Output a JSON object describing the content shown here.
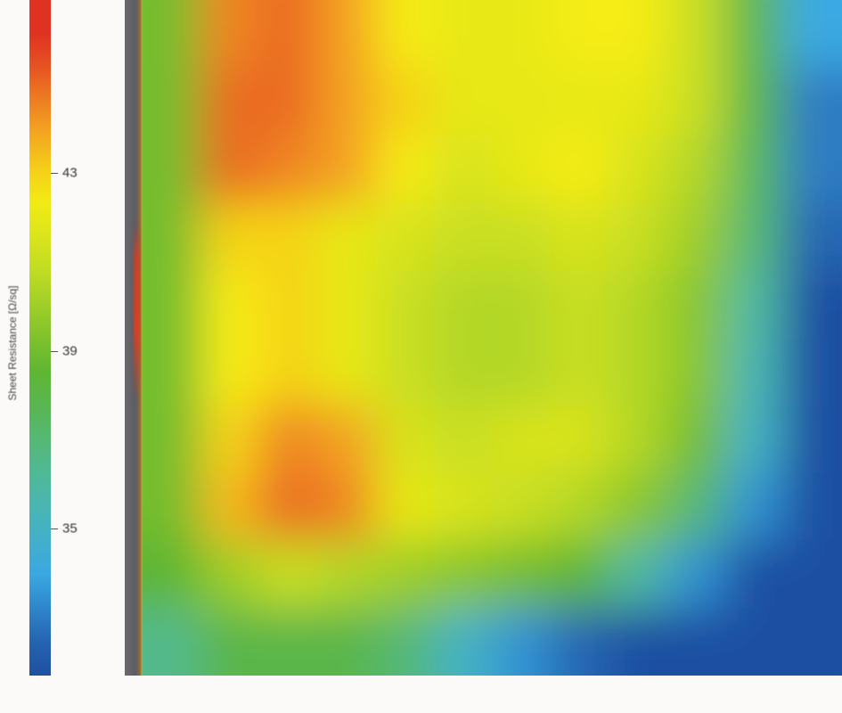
{
  "chart_data": {
    "type": "heatmap",
    "title": "",
    "colorbar": {
      "label": "Sheet Resistance [Ω/sq]",
      "ticks": [
        43,
        39,
        35
      ],
      "range": [
        31.7,
        46.9
      ],
      "colormap": [
        {
          "value": 32,
          "color": "#1f4fa2"
        },
        {
          "value": 34,
          "color": "#3aa9e3"
        },
        {
          "value": 36,
          "color": "#4fbaa2"
        },
        {
          "value": 38.5,
          "color": "#5db532"
        },
        {
          "value": 41,
          "color": "#c9df22"
        },
        {
          "value": 42.5,
          "color": "#f6ec12"
        },
        {
          "value": 44,
          "color": "#f4a122"
        },
        {
          "value": 46,
          "color": "#e03222"
        }
      ]
    },
    "grid": [
      [
        39,
        44.5,
        45,
        44,
        42.5,
        42,
        42,
        42.5,
        42.5,
        41,
        38,
        34
      ],
      [
        39,
        45,
        45,
        44,
        43,
        42,
        42,
        42,
        42,
        41,
        38,
        33
      ],
      [
        39,
        45,
        44.5,
        44,
        42.5,
        41.5,
        42,
        42.5,
        41.5,
        40.5,
        37.5,
        33
      ],
      [
        39,
        43,
        43,
        42,
        41.5,
        41,
        41,
        41.5,
        41,
        40,
        37,
        32.5
      ],
      [
        39,
        42.5,
        43,
        42,
        41,
        40.5,
        40.5,
        41,
        40.5,
        39.5,
        36,
        32
      ],
      [
        39,
        42.5,
        43,
        42,
        41,
        40.5,
        40.5,
        41,
        40.5,
        39.5,
        35.5,
        32
      ],
      [
        39,
        43,
        44.5,
        44,
        41.5,
        41,
        41.5,
        41.5,
        40.5,
        39,
        35,
        32
      ],
      [
        39,
        43.5,
        45,
        44.5,
        42,
        41.5,
        41,
        40.5,
        39.5,
        37,
        33.5,
        32
      ],
      [
        38.5,
        40,
        41,
        40.5,
        40,
        39.5,
        39,
        38.5,
        36,
        33.5,
        32,
        32
      ],
      [
        36.5,
        38,
        38,
        38,
        37,
        35,
        33.5,
        32.5,
        32,
        32,
        32,
        32
      ]
    ]
  }
}
